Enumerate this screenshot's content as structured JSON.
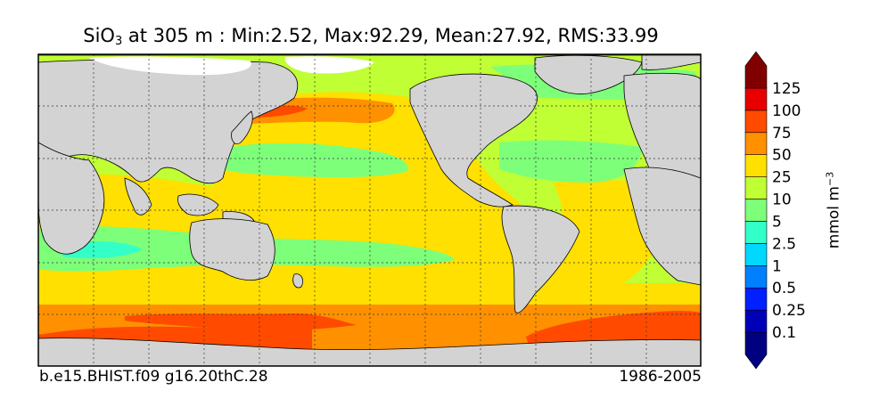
{
  "title": {
    "variable": "SiO",
    "subscript": "3",
    "rest": " at 305 m : Min:2.52, Max:92.29, Mean:27.92, RMS:33.99"
  },
  "footer": {
    "run": "b.e15.BHIST.f09 g16.20thC.28",
    "period": "1986-2005"
  },
  "colorbar": {
    "units_base": "mmol m",
    "units_exp": "−3",
    "tick_labels": [
      "0.1",
      "0.25",
      "0.5",
      "1",
      "2.5",
      "5",
      "10",
      "25",
      "50",
      "75",
      "100",
      "125"
    ],
    "levels": [
      {
        "from": "min",
        "to": "0.1",
        "color": "#000080"
      },
      {
        "from": "0.1",
        "to": "0.25",
        "color": "#0000b8"
      },
      {
        "from": "0.25",
        "to": "0.5",
        "color": "#0020ff"
      },
      {
        "from": "0.5",
        "to": "1",
        "color": "#0080ff"
      },
      {
        "from": "1",
        "to": "2.5",
        "color": "#00d8ff"
      },
      {
        "from": "2.5",
        "to": "5",
        "color": "#33ffc8"
      },
      {
        "from": "5",
        "to": "10",
        "color": "#7dff7a"
      },
      {
        "from": "10",
        "to": "25",
        "color": "#c0ff33"
      },
      {
        "from": "25",
        "to": "50",
        "color": "#ffe000"
      },
      {
        "from": "50",
        "to": "75",
        "color": "#ff9000"
      },
      {
        "from": "75",
        "to": "100",
        "color": "#ff4a00"
      },
      {
        "from": "100",
        "to": "125",
        "color": "#e80000"
      },
      {
        "from": "125",
        "to": "max",
        "color": "#800000"
      }
    ],
    "extend": "both"
  },
  "map": {
    "projection": "cylindrical",
    "land_color": "#d3d3d3",
    "gridlines": "dotted",
    "coastlines": true
  }
}
